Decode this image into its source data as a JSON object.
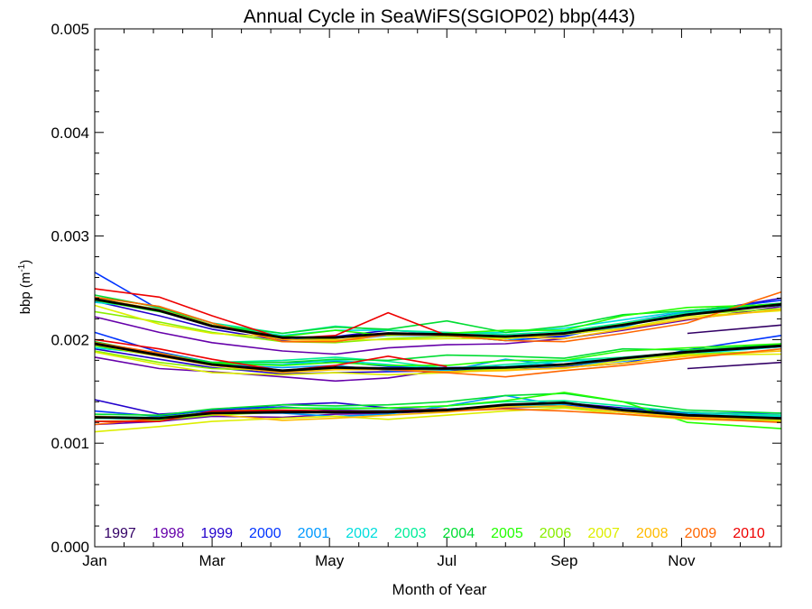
{
  "chart_data": {
    "type": "line",
    "title": "Annual Cycle in SeaWiFS(SGIOP02) bbp(443)",
    "xlabel": "Month of Year",
    "ylabel_main": "bbp (m",
    "ylabel_sup": "-1",
    "ylabel_close": ")",
    "xlim": [
      1,
      12.7
    ],
    "ylim": [
      0,
      0.005
    ],
    "x_ticks": [
      {
        "value": 1,
        "label": "Jan"
      },
      {
        "value": 3,
        "label": "Mar"
      },
      {
        "value": 5,
        "label": "May"
      },
      {
        "value": 7,
        "label": "Jul"
      },
      {
        "value": 9,
        "label": "Sep"
      },
      {
        "value": 11,
        "label": "Nov"
      }
    ],
    "y_ticks": [
      {
        "value": 0.0,
        "label": "0.000"
      },
      {
        "value": 0.001,
        "label": "0.001"
      },
      {
        "value": 0.002,
        "label": "0.002"
      },
      {
        "value": 0.003,
        "label": "0.003"
      },
      {
        "value": 0.004,
        "label": "0.004"
      },
      {
        "value": 0.005,
        "label": "0.005"
      }
    ],
    "legend_placement": "bottom",
    "x": [
      1.0,
      2.1,
      3.0,
      4.2,
      5.1,
      6.0,
      7.0,
      8.0,
      9.0,
      10.0,
      11.1,
      12.7
    ],
    "series": [
      {
        "name": "1997",
        "color": "#330066",
        "start": 10,
        "upper": [
          0.00206,
          0.00214
        ],
        "middle": [
          0.00172,
          0.00178
        ],
        "lower": [
          0.00124,
          0.00121
        ]
      },
      {
        "name": "1998",
        "color": "#6600aa",
        "upper": [
          0.00222,
          0.00207,
          0.00197,
          0.00189,
          0.00186,
          0.00192,
          0.00195,
          0.00196,
          0.00201,
          0.00209,
          0.00219,
          0.00232
        ],
        "middle": [
          0.00183,
          0.00172,
          0.00169,
          0.00164,
          0.0016,
          0.00163,
          0.00171,
          0.00172,
          0.00175,
          0.00181,
          0.00187,
          0.00193
        ],
        "lower": [
          0.00118,
          0.00121,
          0.00126,
          0.00125,
          0.00128,
          0.00129,
          0.00131,
          0.00134,
          0.00136,
          0.00131,
          0.00126,
          0.00122
        ]
      },
      {
        "name": "1999",
        "color": "#2200cc",
        "upper": [
          0.00237,
          0.00223,
          0.0021,
          0.00199,
          0.00203,
          0.00209,
          0.00206,
          0.00201,
          0.00204,
          0.00213,
          0.00225,
          0.0024
        ],
        "middle": [
          0.00191,
          0.00181,
          0.00173,
          0.00167,
          0.00168,
          0.00169,
          0.0017,
          0.00172,
          0.00174,
          0.0018,
          0.00188,
          0.00196
        ],
        "lower": [
          0.00142,
          0.00128,
          0.00131,
          0.00137,
          0.00139,
          0.00134,
          0.00132,
          0.00137,
          0.00139,
          0.00134,
          0.0013,
          0.00127
        ]
      },
      {
        "name": "2000",
        "color": "#0033ff",
        "upper": [
          0.00265,
          0.00229,
          0.00214,
          0.00201,
          0.00203,
          0.00206,
          0.00204,
          0.00199,
          0.00203,
          0.00216,
          0.00227,
          0.00238
        ],
        "middle": [
          0.00207,
          0.00188,
          0.00178,
          0.00178,
          0.00179,
          0.00174,
          0.00173,
          0.00174,
          0.00173,
          0.00177,
          0.0019,
          0.00204
        ],
        "lower": [
          0.00131,
          0.00126,
          0.00132,
          0.00135,
          0.00132,
          0.00131,
          0.00133,
          0.00135,
          0.00137,
          0.00132,
          0.00129,
          0.00129
        ]
      },
      {
        "name": "2001",
        "color": "#0099ff",
        "upper": [
          0.00239,
          0.00228,
          0.00213,
          0.00202,
          0.00199,
          0.00204,
          0.00204,
          0.00199,
          0.00207,
          0.00212,
          0.00228,
          0.00235
        ],
        "middle": [
          0.00196,
          0.00187,
          0.00176,
          0.00173,
          0.00175,
          0.0017,
          0.0017,
          0.00181,
          0.00175,
          0.00179,
          0.00188,
          0.00196
        ],
        "lower": [
          0.00126,
          0.00124,
          0.00129,
          0.00129,
          0.00126,
          0.00128,
          0.00136,
          0.00146,
          0.00136,
          0.0013,
          0.00127,
          0.00125
        ]
      },
      {
        "name": "2002",
        "color": "#00dddd",
        "upper": [
          0.00236,
          0.0023,
          0.00214,
          0.00204,
          0.00209,
          0.00209,
          0.00206,
          0.00207,
          0.00211,
          0.00219,
          0.00228,
          0.00233
        ],
        "middle": [
          0.00192,
          0.00186,
          0.00177,
          0.00176,
          0.0018,
          0.00176,
          0.00171,
          0.00174,
          0.00179,
          0.00181,
          0.00186,
          0.00193
        ],
        "lower": [
          0.00124,
          0.00123,
          0.00128,
          0.00131,
          0.00131,
          0.00132,
          0.00133,
          0.00136,
          0.00138,
          0.00133,
          0.00128,
          0.00126
        ]
      },
      {
        "name": "2003",
        "color": "#00ee99",
        "upper": [
          0.00241,
          0.00232,
          0.00216,
          0.00206,
          0.00213,
          0.00209,
          0.00207,
          0.00205,
          0.00208,
          0.00216,
          0.00226,
          0.00233
        ],
        "middle": [
          0.00196,
          0.00187,
          0.00178,
          0.0018,
          0.00183,
          0.00179,
          0.00172,
          0.00176,
          0.0018,
          0.00183,
          0.00188,
          0.00195
        ],
        "lower": [
          0.00126,
          0.00125,
          0.0013,
          0.00134,
          0.00134,
          0.00134,
          0.00136,
          0.0014,
          0.00141,
          0.00136,
          0.0013,
          0.00127
        ]
      },
      {
        "name": "2004",
        "color": "#00dd33",
        "upper": [
          0.00243,
          0.00231,
          0.00214,
          0.00206,
          0.00212,
          0.0021,
          0.00218,
          0.00207,
          0.00213,
          0.00224,
          0.00228,
          0.00235
        ],
        "middle": [
          0.00198,
          0.00186,
          0.00178,
          0.00178,
          0.00181,
          0.0018,
          0.00185,
          0.00184,
          0.00182,
          0.00191,
          0.0019,
          0.00195
        ],
        "lower": [
          0.00128,
          0.00127,
          0.00133,
          0.00137,
          0.00136,
          0.00137,
          0.0014,
          0.00146,
          0.00148,
          0.0014,
          0.00132,
          0.00129
        ]
      },
      {
        "name": "2005",
        "color": "#22ff00",
        "upper": [
          0.00238,
          0.00227,
          0.00214,
          0.00203,
          0.00209,
          0.00204,
          0.00206,
          0.00209,
          0.00209,
          0.00223,
          0.00231,
          0.00234
        ],
        "middle": [
          0.00194,
          0.00184,
          0.00177,
          0.00175,
          0.00178,
          0.00175,
          0.00175,
          0.0018,
          0.0018,
          0.00189,
          0.00192,
          0.00196
        ],
        "lower": [
          0.00124,
          0.00125,
          0.0013,
          0.00134,
          0.00133,
          0.00134,
          0.00136,
          0.00141,
          0.00149,
          0.0014,
          0.0012,
          0.00114
        ]
      },
      {
        "name": "2006",
        "color": "#88ee00",
        "upper": [
          0.00227,
          0.00217,
          0.00207,
          0.00198,
          0.00197,
          0.00201,
          0.00203,
          0.00202,
          0.00206,
          0.00215,
          0.00224,
          0.0023
        ],
        "middle": [
          0.00189,
          0.00178,
          0.00172,
          0.0017,
          0.00172,
          0.00171,
          0.00169,
          0.00172,
          0.00175,
          0.00182,
          0.00186,
          0.00189
        ],
        "lower": [
          0.00121,
          0.00122,
          0.00127,
          0.0013,
          0.00131,
          0.0013,
          0.00131,
          0.00135,
          0.00135,
          0.0013,
          0.00125,
          0.00122
        ]
      },
      {
        "name": "2007",
        "color": "#ddee00",
        "upper": [
          0.00233,
          0.00215,
          0.00206,
          0.00202,
          0.002,
          0.002,
          0.00201,
          0.00201,
          0.00205,
          0.00211,
          0.00222,
          0.00228
        ],
        "middle": [
          0.00188,
          0.00176,
          0.00168,
          0.00166,
          0.00168,
          0.00166,
          0.00168,
          0.00171,
          0.00172,
          0.0018,
          0.00185,
          0.00186
        ],
        "lower": [
          0.00111,
          0.00116,
          0.00121,
          0.00124,
          0.00126,
          0.00123,
          0.00127,
          0.00131,
          0.00134,
          0.00128,
          0.00123,
          0.00121
        ]
      },
      {
        "name": "2008",
        "color": "#ffbb00",
        "upper": [
          0.0024,
          0.00229,
          0.00214,
          0.002,
          0.00199,
          0.00206,
          0.00205,
          0.00203,
          0.00201,
          0.0021,
          0.0022,
          0.00229
        ],
        "middle": [
          0.00195,
          0.00184,
          0.00175,
          0.00168,
          0.00171,
          0.00171,
          0.00169,
          0.0017,
          0.00173,
          0.00177,
          0.00184,
          0.00189
        ],
        "lower": [
          0.00126,
          0.00124,
          0.00128,
          0.00122,
          0.00124,
          0.00127,
          0.0013,
          0.00135,
          0.00136,
          0.0013,
          0.00125,
          0.00123
        ]
      },
      {
        "name": "2009",
        "color": "#ff6600",
        "upper": [
          0.00241,
          0.00232,
          0.00216,
          0.00198,
          0.00198,
          0.00205,
          0.00204,
          0.00199,
          0.00198,
          0.00206,
          0.00216,
          0.00246
        ],
        "middle": [
          0.00197,
          0.00187,
          0.00176,
          0.00169,
          0.00173,
          0.00171,
          0.00168,
          0.00164,
          0.0017,
          0.00175,
          0.00182,
          0.00191
        ],
        "lower": [
          0.00118,
          0.00124,
          0.0013,
          0.00131,
          0.0013,
          0.0013,
          0.00131,
          0.00133,
          0.00131,
          0.00128,
          0.00124,
          0.0012
        ]
      },
      {
        "name": "2010",
        "color": "#ee0000",
        "end": 7,
        "upper": [
          0.00249,
          0.00241,
          0.00223,
          0.00201,
          0.00204,
          0.00226,
          0.00204
        ],
        "middle": [
          0.002,
          0.00191,
          0.00181,
          0.0017,
          0.00175,
          0.00184,
          0.00174
        ],
        "lower": [
          0.00121,
          0.00121,
          0.00131,
          0.00132,
          0.00131,
          0.00131,
          0.00133
        ]
      }
    ],
    "climatology": {
      "color": "#000000",
      "upper": [
        0.00239,
        0.00228,
        0.00213,
        0.00202,
        0.00202,
        0.00206,
        0.00205,
        0.00203,
        0.00206,
        0.00214,
        0.00224,
        0.00234
      ],
      "middle": [
        0.00196,
        0.00185,
        0.00176,
        0.0017,
        0.00173,
        0.00172,
        0.00172,
        0.00173,
        0.00176,
        0.00182,
        0.00188,
        0.00194
      ],
      "lower": [
        0.00125,
        0.00124,
        0.00129,
        0.0013,
        0.0013,
        0.0013,
        0.00132,
        0.00137,
        0.00139,
        0.00132,
        0.00127,
        0.00124
      ]
    }
  }
}
